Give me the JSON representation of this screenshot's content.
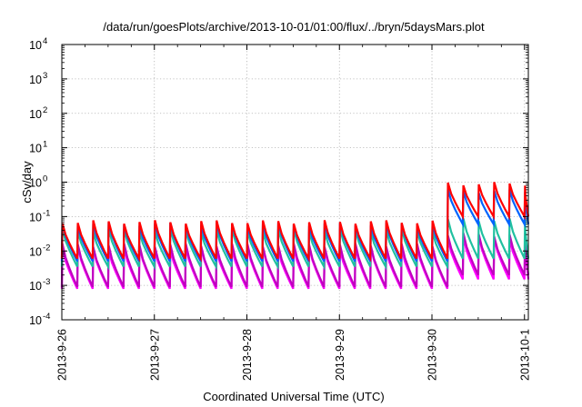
{
  "chart_data": {
    "type": "line",
    "title": "/data/run/goesPlots/archive/2013-10-01/01:00/flux/../bryn/5daysMars.plot",
    "xlabel": "Coordinated Universal Time (UTC)",
    "ylabel": "cSv/day",
    "yscale": "log",
    "ylim": [
      0.0001,
      10000
    ],
    "xlim": [
      "2013-09-26T00:00",
      "2013-10-01T01:00"
    ],
    "grid": true,
    "legend": "none",
    "x_ticks": [
      "2013-9-26",
      "2013-9-27",
      "2013-9-28",
      "2013-9-29",
      "2013-9-30",
      "2013-10-1"
    ],
    "y_ticks": [
      {
        "base": "10",
        "exp": "-4"
      },
      {
        "base": "10",
        "exp": "-3"
      },
      {
        "base": "10",
        "exp": "-2"
      },
      {
        "base": "10",
        "exp": "-1"
      },
      {
        "base": "10",
        "exp": "0"
      },
      {
        "base": "10",
        "exp": "1"
      },
      {
        "base": "10",
        "exp": "2"
      },
      {
        "base": "10",
        "exp": "3"
      },
      {
        "base": "10",
        "exp": "4"
      }
    ],
    "pattern": {
      "period_hours": 4,
      "change_time": "2013-09-30T03:00",
      "note": "sawtooth series, peak at start of each 4-hour cycle, decaying to trough"
    },
    "series": [
      {
        "color": "#ff0000",
        "peak_before": 0.07,
        "trough_before": 0.006,
        "peak_after": 0.9,
        "trough_after": 0.1
      },
      {
        "color": "#0064ff",
        "peak_before": 0.06,
        "trough_before": 0.005,
        "peak_after": 0.55,
        "trough_after": 0.06
      },
      {
        "color": "#20c0a0",
        "peak_before": 0.04,
        "trough_before": 0.0035,
        "peak_after": 0.08,
        "trough_after": 0.006
      },
      {
        "color": "#c000c0",
        "peak_before": 0.015,
        "trough_before": 0.0009,
        "peak_after": 0.03,
        "trough_after": 0.002
      },
      {
        "color": "#ff00ff",
        "peak_before": 0.012,
        "trough_before": 0.0008,
        "peak_after": 0.025,
        "trough_after": 0.0015
      }
    ]
  }
}
